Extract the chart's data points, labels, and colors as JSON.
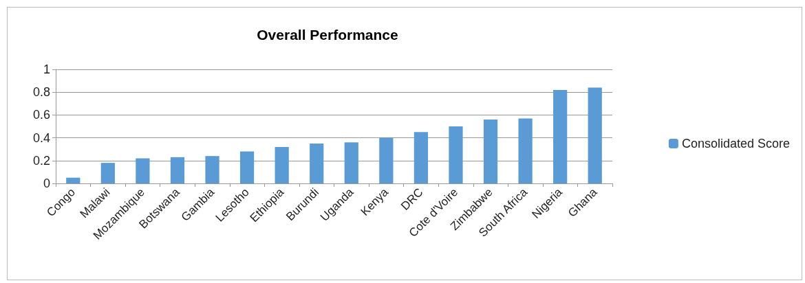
{
  "chart_data": {
    "type": "bar",
    "title": "Overall Performance",
    "categories": [
      "Congo",
      "Malawi",
      "Mozambique",
      "Botswana",
      "Gambia",
      "Lesotho",
      "Ethiopia",
      "Burundi",
      "Uganda",
      "Kenya",
      "DRC",
      "Cote d'Voire",
      "Zimbabwe",
      "South Africa",
      "Nigeria",
      "Ghana"
    ],
    "series": [
      {
        "name": "Consolidated Score",
        "color": "#5b9bd5",
        "values": [
          0.05,
          0.18,
          0.22,
          0.23,
          0.24,
          0.28,
          0.32,
          0.35,
          0.36,
          0.4,
          0.45,
          0.5,
          0.56,
          0.57,
          0.82,
          0.84
        ]
      }
    ],
    "ylim": [
      0,
      1
    ],
    "yticks": [
      0,
      0.2,
      0.4,
      0.6,
      0.8,
      1
    ],
    "grid": "y",
    "legend": "right"
  }
}
